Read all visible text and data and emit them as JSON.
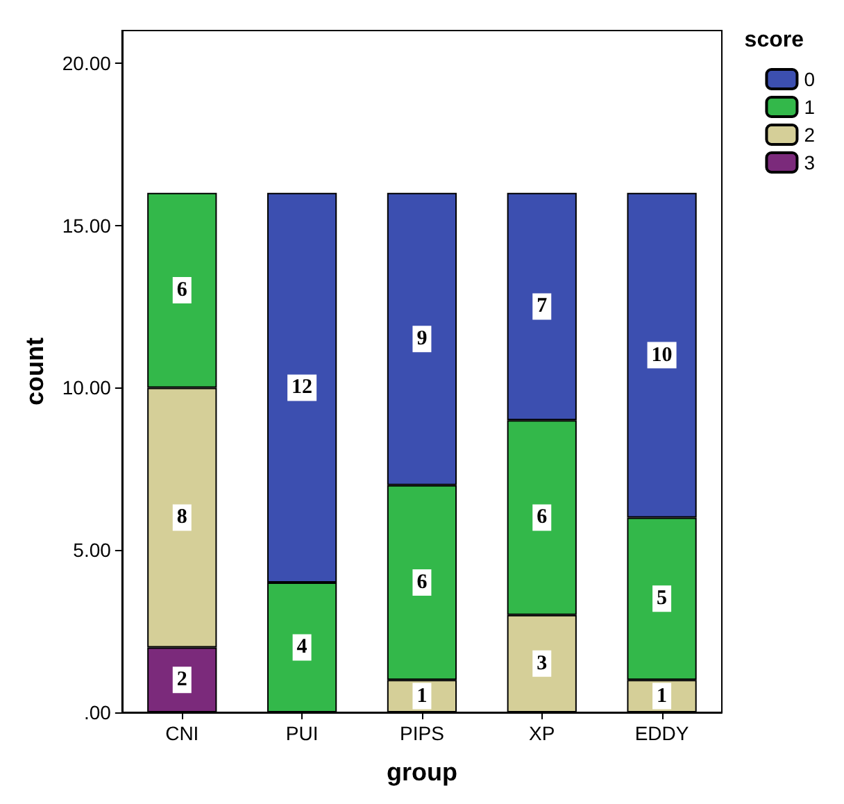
{
  "chart_data": {
    "type": "bar",
    "xlabel": "group",
    "ylabel": "count",
    "legend_title": "score",
    "categories": [
      "CNI",
      "PUI",
      "PIPS",
      "XP",
      "EDDY"
    ],
    "stacked": true,
    "data_labels": true,
    "legend": "top right",
    "grid": false,
    "ylim": [
      0,
      21
    ],
    "yticks": [
      {
        "value": 0,
        "label": ".00"
      },
      {
        "value": 5,
        "label": "5.00"
      },
      {
        "value": 10,
        "label": "10.00"
      },
      {
        "value": 15,
        "label": "15.00"
      },
      {
        "value": 20,
        "label": "20.00"
      }
    ],
    "series": [
      {
        "name": "3",
        "color": "#7b2a7b",
        "values": [
          2,
          null,
          null,
          null,
          null
        ]
      },
      {
        "name": "2",
        "color": "#d5cf98",
        "values": [
          8,
          null,
          1,
          3,
          1
        ]
      },
      {
        "name": "1",
        "color": "#33b84a",
        "values": [
          6,
          4,
          6,
          6,
          5
        ]
      },
      {
        "name": "0",
        "color": "#3c4fb0",
        "values": [
          null,
          12,
          9,
          7,
          10
        ]
      }
    ]
  }
}
